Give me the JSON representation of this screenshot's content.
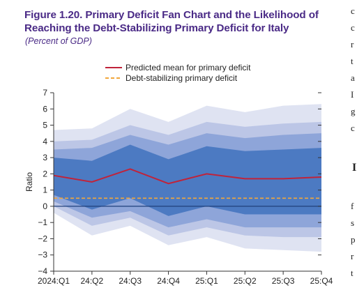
{
  "figure": {
    "title": "Figure 1.20. Primary Deficit Fan Chart and the Likelihood of Reaching the Debt-Stabilizing Primary Deficit for Italy",
    "subtitle": "(Percent of GDP)"
  },
  "adjacent_text": [
    "c",
    "c",
    "r",
    "t",
    "a",
    "I",
    "g",
    "c",
    "I",
    "f",
    "s",
    "p",
    "r",
    "t"
  ],
  "colors": {
    "title": "#4a2a86",
    "mean_line": "#c0233a",
    "stabilizing_line": "#f2a73b",
    "band_outer": "#dfe3f2",
    "band_2": "#bcc6e6",
    "band_3": "#8ea5d9",
    "band_inner": "#4c7ac2",
    "zero_line": "#1f3f7a"
  },
  "chart_data": {
    "type": "area",
    "title": "",
    "xlabel": "",
    "ylabel": "Ratio",
    "x": [
      "2024:Q1",
      "24:Q2",
      "24:Q3",
      "24:Q4",
      "25:Q1",
      "25:Q2",
      "25:Q3",
      "25:Q4"
    ],
    "ylim": [
      -4,
      7
    ],
    "yticks": [
      -4,
      -3,
      -2,
      -1,
      0,
      1,
      2,
      3,
      4,
      5,
      6,
      7
    ],
    "legend_position": "top",
    "series": [
      {
        "name": "Predicted mean for primary deficit",
        "values": [
          1.9,
          1.5,
          2.3,
          1.4,
          2.0,
          1.7,
          1.7,
          1.8
        ]
      },
      {
        "name": "Debt-stabilizing primary deficit",
        "values": [
          0.5,
          0.5,
          0.5,
          0.5,
          0.5,
          0.5,
          0.5,
          0.5
        ]
      }
    ],
    "bands": [
      {
        "lower": [
          -0.4,
          -1.8,
          -1.2,
          -2.4,
          -1.9,
          -2.6,
          -2.7,
          -2.8
        ],
        "upper": [
          4.7,
          4.8,
          6.0,
          5.2,
          6.2,
          5.8,
          6.2,
          6.3
        ]
      },
      {
        "lower": [
          0.0,
          -1.2,
          -0.7,
          -1.8,
          -1.3,
          -1.8,
          -1.9,
          -1.9
        ],
        "upper": [
          4.0,
          4.1,
          5.0,
          4.4,
          5.2,
          4.9,
          5.1,
          5.2
        ]
      },
      {
        "lower": [
          0.3,
          -0.7,
          -0.3,
          -1.3,
          -0.8,
          -1.3,
          -1.3,
          -1.3
        ],
        "upper": [
          3.5,
          3.6,
          4.4,
          3.8,
          4.5,
          4.2,
          4.4,
          4.5
        ]
      },
      {
        "lower": [
          0.7,
          -0.2,
          0.5,
          -0.6,
          0.0,
          -0.5,
          -0.5,
          -0.5
        ],
        "upper": [
          3.0,
          2.8,
          3.8,
          2.9,
          3.7,
          3.4,
          3.5,
          3.6
        ]
      }
    ]
  }
}
